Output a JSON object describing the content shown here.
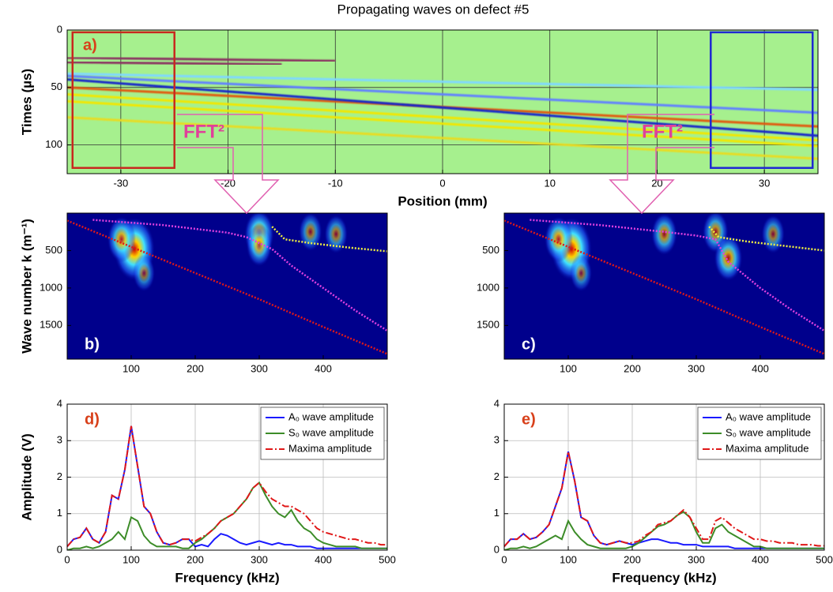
{
  "chart_data": [
    {
      "type": "heatmap",
      "title": "Propagating waves on defect #5",
      "panel_label": "a)",
      "panel_label_color": "#d8401a",
      "panel_label_corner": "top left",
      "xlabel": "Position (mm)",
      "ylabel": "Times (µs)",
      "background": "#a6f08e",
      "xlim": [
        -35,
        35
      ],
      "ylim": [
        125,
        0
      ],
      "xticks": [
        -30,
        -20,
        -10,
        0,
        10,
        20,
        30
      ],
      "yticks": [
        0,
        50,
        100
      ],
      "grid": true,
      "grid_color": "#333333",
      "lines": [
        {
          "color": "#f2e600",
          "x": [
            -35,
            35
          ],
          "values": [
            56,
            96
          ]
        },
        {
          "color": "#f2e600",
          "x": [
            -35,
            35
          ],
          "values": [
            62,
            101
          ]
        },
        {
          "color": "#e8dc20",
          "x": [
            -35,
            35
          ],
          "values": [
            76,
            112
          ]
        },
        {
          "color": "#7fd8ff",
          "x": [
            -35,
            35
          ],
          "values": [
            38,
            52
          ]
        },
        {
          "color": "#6080ff",
          "x": [
            -35,
            35
          ],
          "values": [
            40,
            72
          ]
        },
        {
          "color": "#e05a10",
          "x": [
            -35,
            35
          ],
          "values": [
            50,
            84
          ]
        },
        {
          "color": "#1428c8",
          "x": [
            -35,
            35
          ],
          "values": [
            43,
            92
          ]
        },
        {
          "color": "#8a3060",
          "x": [
            -35,
            -10
          ],
          "values": [
            24,
            27
          ]
        },
        {
          "color": "#8a3060",
          "x": [
            -35,
            -15
          ],
          "values": [
            28,
            30
          ]
        }
      ],
      "windows": [
        {
          "color": "#c8281e",
          "x": [
            -34.5,
            -25
          ],
          "y": [
            2,
            120
          ]
        },
        {
          "color": "#1e28d2",
          "x": [
            25,
            34.5
          ],
          "y": [
            2,
            120
          ]
        }
      ],
      "annotations": [
        "FFT²",
        "FFT²"
      ]
    },
    {
      "type": "heatmap",
      "panel_label": "b)",
      "panel_label_color": "#ffffff",
      "panel_label_corner": "bottom left",
      "ylabel": "Wave number k (m⁻¹)",
      "background": "#00008c",
      "xlim": [
        0,
        500
      ],
      "ylim": [
        1950,
        0
      ],
      "xticks": [
        100,
        200,
        300,
        400
      ],
      "yticks": [
        500,
        1000,
        1500
      ],
      "grid": false,
      "blobs": {
        "x": [
          105,
          85,
          300,
          300,
          380,
          420,
          120
        ],
        "y": [
          480,
          350,
          280,
          430,
          250,
          280,
          800
        ],
        "intensity": [
          1,
          0.5,
          0.55,
          0.4,
          0.3,
          0.3,
          0.25
        ]
      },
      "lines": [
        {
          "color": "#e01818",
          "linestyle": "dotted",
          "x": [
            0,
            100,
            200,
            300,
            400,
            500
          ],
          "values": [
            100,
            450,
            800,
            1150,
            1520,
            1880
          ]
        },
        {
          "color": "#e040e0",
          "linestyle": "dotted",
          "x": [
            40,
            150,
            250,
            280,
            320,
            350,
            400,
            450,
            500
          ],
          "values": [
            90,
            160,
            260,
            320,
            480,
            700,
            1000,
            1300,
            1570
          ]
        },
        {
          "color": "#f0f040",
          "linestyle": "dotted",
          "x": [
            320,
            340,
            380,
            440,
            500
          ],
          "values": [
            180,
            350,
            400,
            460,
            510
          ]
        }
      ]
    },
    {
      "type": "heatmap",
      "panel_label": "c)",
      "panel_label_color": "#ffffff",
      "panel_label_corner": "bottom left",
      "background": "#00008c",
      "xlim": [
        0,
        500
      ],
      "ylim": [
        1950,
        0
      ],
      "xticks": [
        100,
        200,
        300,
        400
      ],
      "yticks": [
        500,
        1000,
        1500
      ],
      "grid": false,
      "blobs": {
        "x": [
          105,
          85,
          250,
          330,
          350,
          420,
          120
        ],
        "y": [
          480,
          350,
          280,
          250,
          600,
          280,
          800
        ],
        "intensity": [
          1,
          0.5,
          0.4,
          0.4,
          0.5,
          0.3,
          0.25
        ]
      },
      "lines": [
        {
          "color": "#e01818",
          "linestyle": "dotted",
          "x": [
            0,
            100,
            200,
            300,
            400,
            500
          ],
          "values": [
            100,
            450,
            800,
            1150,
            1520,
            1880
          ]
        },
        {
          "color": "#e040e0",
          "linestyle": "dotted",
          "x": [
            40,
            150,
            250,
            300,
            330,
            350,
            400,
            450,
            500
          ],
          "values": [
            90,
            160,
            250,
            300,
            350,
            650,
            1000,
            1300,
            1570
          ]
        },
        {
          "color": "#f0f040",
          "linestyle": "dotted",
          "x": [
            320,
            335,
            380,
            440,
            500
          ],
          "values": [
            180,
            320,
            380,
            440,
            500
          ]
        }
      ]
    },
    {
      "type": "line",
      "panel_label": "d)",
      "panel_label_color": "#d8401a",
      "panel_label_corner": "top left",
      "xlabel": "Frequency (kHz)",
      "ylabel": "Amplitude (V)",
      "xlim": [
        0,
        500
      ],
      "ylim": [
        0,
        4
      ],
      "xticks": [
        0,
        100,
        200,
        300,
        400,
        500
      ],
      "yticks": [
        0,
        1,
        2,
        3,
        4
      ],
      "grid": true,
      "grid_color": "#bbbbbb",
      "legend": "upper right",
      "x": [
        0,
        10,
        20,
        30,
        40,
        50,
        60,
        70,
        80,
        90,
        100,
        110,
        120,
        130,
        140,
        150,
        160,
        170,
        180,
        190,
        200,
        210,
        220,
        230,
        240,
        250,
        260,
        270,
        280,
        290,
        300,
        310,
        320,
        330,
        340,
        350,
        360,
        370,
        380,
        390,
        400,
        410,
        420,
        430,
        440,
        450,
        460,
        470,
        480,
        490,
        500
      ],
      "series": [
        {
          "name": "A₀ wave amplitude",
          "color": "#1a1aff",
          "linestyle": "solid",
          "values": [
            0.1,
            0.3,
            0.35,
            0.6,
            0.3,
            0.2,
            0.5,
            1.5,
            1.4,
            2.2,
            3.4,
            2.3,
            1.2,
            1.0,
            0.5,
            0.2,
            0.15,
            0.2,
            0.3,
            0.3,
            0.1,
            0.15,
            0.1,
            0.3,
            0.45,
            0.4,
            0.3,
            0.2,
            0.15,
            0.2,
            0.25,
            0.2,
            0.15,
            0.2,
            0.15,
            0.15,
            0.1,
            0.1,
            0.1,
            0.05,
            0.05,
            0.05,
            0.05,
            0.05,
            0.05,
            0.05,
            0.05,
            0.05,
            0.05,
            0.05,
            0.05
          ]
        },
        {
          "name": "S₀ wave amplitude",
          "color": "#3c8c28",
          "linestyle": "solid",
          "values": [
            0,
            0.05,
            0.05,
            0.1,
            0.05,
            0.1,
            0.2,
            0.3,
            0.5,
            0.3,
            0.9,
            0.8,
            0.4,
            0.2,
            0.1,
            0.1,
            0.1,
            0.1,
            0.05,
            0.05,
            0.2,
            0.3,
            0.45,
            0.6,
            0.8,
            0.9,
            1.0,
            1.2,
            1.4,
            1.7,
            1.85,
            1.5,
            1.2,
            1.0,
            0.9,
            1.1,
            0.8,
            0.6,
            0.5,
            0.3,
            0.2,
            0.15,
            0.1,
            0.1,
            0.1,
            0.1,
            0.05,
            0.05,
            0.05,
            0.05,
            0.05
          ]
        },
        {
          "name": "Maxima amplitude",
          "color": "#e01818",
          "linestyle": "dashdot",
          "values": [
            0.1,
            0.3,
            0.35,
            0.6,
            0.3,
            0.2,
            0.5,
            1.5,
            1.4,
            2.2,
            3.4,
            2.3,
            1.2,
            1.0,
            0.5,
            0.2,
            0.15,
            0.2,
            0.3,
            0.3,
            0.25,
            0.35,
            0.45,
            0.6,
            0.8,
            0.9,
            1.0,
            1.2,
            1.4,
            1.7,
            1.85,
            1.6,
            1.4,
            1.3,
            1.2,
            1.2,
            1.1,
            1.0,
            0.8,
            0.6,
            0.5,
            0.45,
            0.4,
            0.35,
            0.3,
            0.3,
            0.25,
            0.2,
            0.2,
            0.15,
            0.15
          ]
        }
      ]
    },
    {
      "type": "line",
      "panel_label": "e)",
      "panel_label_color": "#d8401a",
      "panel_label_corner": "top left",
      "xlabel": "Frequency (kHz)",
      "xlim": [
        0,
        500
      ],
      "ylim": [
        0,
        4
      ],
      "xticks": [
        0,
        100,
        200,
        300,
        400,
        500
      ],
      "yticks": [
        0,
        1,
        2,
        3,
        4
      ],
      "grid": true,
      "grid_color": "#bbbbbb",
      "legend": "upper right",
      "x": [
        0,
        10,
        20,
        30,
        40,
        50,
        60,
        70,
        80,
        90,
        100,
        110,
        120,
        130,
        140,
        150,
        160,
        170,
        180,
        190,
        200,
        210,
        220,
        230,
        240,
        250,
        260,
        270,
        280,
        290,
        300,
        310,
        320,
        330,
        340,
        350,
        360,
        370,
        380,
        390,
        400,
        410,
        420,
        430,
        440,
        450,
        460,
        470,
        480,
        490,
        500
      ],
      "series": [
        {
          "name": "A₀ wave amplitude",
          "color": "#1a1aff",
          "linestyle": "solid",
          "values": [
            0.1,
            0.3,
            0.3,
            0.45,
            0.3,
            0.35,
            0.5,
            0.7,
            1.2,
            1.7,
            2.7,
            1.9,
            0.9,
            0.8,
            0.4,
            0.2,
            0.15,
            0.2,
            0.25,
            0.2,
            0.15,
            0.2,
            0.25,
            0.3,
            0.3,
            0.25,
            0.2,
            0.2,
            0.15,
            0.15,
            0.15,
            0.1,
            0.1,
            0.1,
            0.1,
            0.1,
            0.05,
            0.05,
            0.05,
            0.05,
            0.05,
            0.05,
            0.05,
            0.05,
            0.05,
            0.05,
            0.05,
            0.05,
            0.05,
            0.05,
            0.05
          ]
        },
        {
          "name": "S₀ wave amplitude",
          "color": "#3c8c28",
          "linestyle": "solid",
          "values": [
            0,
            0.05,
            0.05,
            0.1,
            0.05,
            0.1,
            0.2,
            0.3,
            0.4,
            0.3,
            0.8,
            0.5,
            0.3,
            0.15,
            0.1,
            0.05,
            0.05,
            0.05,
            0.05,
            0.05,
            0.1,
            0.2,
            0.35,
            0.5,
            0.65,
            0.7,
            0.8,
            0.95,
            1.05,
            0.9,
            0.5,
            0.2,
            0.2,
            0.6,
            0.7,
            0.5,
            0.4,
            0.3,
            0.2,
            0.1,
            0.1,
            0.05,
            0.05,
            0.05,
            0.05,
            0.05,
            0.05,
            0.05,
            0.05,
            0.05,
            0.05
          ]
        },
        {
          "name": "Maxima amplitude",
          "color": "#e01818",
          "linestyle": "dashdot",
          "values": [
            0.1,
            0.3,
            0.3,
            0.45,
            0.3,
            0.35,
            0.5,
            0.7,
            1.2,
            1.7,
            2.7,
            1.9,
            0.9,
            0.8,
            0.4,
            0.2,
            0.15,
            0.2,
            0.25,
            0.2,
            0.2,
            0.25,
            0.4,
            0.5,
            0.7,
            0.75,
            0.8,
            0.95,
            1.1,
            0.9,
            0.6,
            0.3,
            0.3,
            0.8,
            0.9,
            0.75,
            0.6,
            0.5,
            0.4,
            0.3,
            0.3,
            0.25,
            0.25,
            0.2,
            0.2,
            0.2,
            0.15,
            0.15,
            0.15,
            0.12,
            0.12
          ]
        }
      ]
    }
  ]
}
